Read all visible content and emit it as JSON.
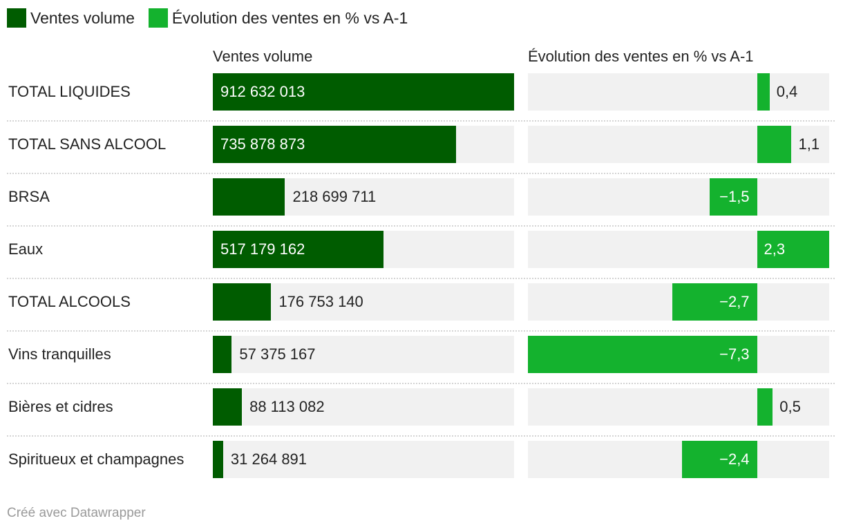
{
  "colors": {
    "volume": "#005c00",
    "evolution": "#14b22e",
    "track": "#f1f1f1",
    "text": "#222222",
    "inside_text": "#ffffff"
  },
  "legend": [
    {
      "label": "Ventes volume",
      "color": "#005c00"
    },
    {
      "label": "Évolution des ventes en % vs A-1",
      "color": "#14b22e"
    }
  ],
  "headers": {
    "volume": "Ventes volume",
    "evolution": "Évolution des ventes en % vs A-1"
  },
  "footer": "Créé avec Datawrapper",
  "chart_data": {
    "type": "bar",
    "title": "",
    "categories": [
      "TOTAL LIQUIDES",
      "TOTAL SANS ALCOOL",
      "BRSA",
      "Eaux",
      "TOTAL ALCOOLS",
      "Vins tranquilles",
      "Bières et cidres",
      "Spiritueux et champagnes"
    ],
    "series": [
      {
        "name": "Ventes volume",
        "values": [
          912632013,
          735878873,
          218699711,
          517179162,
          176753140,
          57375167,
          88113082,
          31264891
        ],
        "labels": [
          "912 632 013",
          "735 878 873",
          "218 699 711",
          "517 179 162",
          "176 753 140",
          "57 375 167",
          "88 113 082",
          "31 264 891"
        ],
        "range": [
          0,
          912632013
        ]
      },
      {
        "name": "Évolution des ventes en % vs A-1",
        "values": [
          0.4,
          1.1,
          -1.5,
          2.3,
          -2.7,
          -7.3,
          0.5,
          -2.4
        ],
        "labels": [
          "0,4",
          "1,1",
          "−1,5",
          "2,3",
          "−2,7",
          "−7,3",
          "0,5",
          "−2,4"
        ],
        "range": [
          -7.3,
          2.3
        ]
      }
    ],
    "xlabel": "",
    "ylabel": ""
  }
}
